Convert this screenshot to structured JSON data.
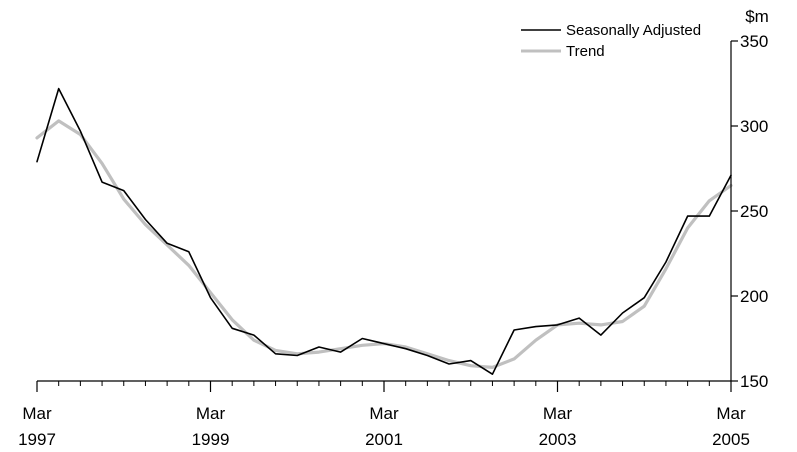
{
  "chart_data": {
    "type": "line",
    "title": "",
    "xlabel": "",
    "ylabel": "$m",
    "ylim": [
      150,
      350
    ],
    "y_ticks": [
      150,
      200,
      250,
      300,
      350
    ],
    "x_ticks": [
      {
        "x": 0,
        "month": "Mar",
        "year": "1997"
      },
      {
        "x": 8,
        "month": "Mar",
        "year": "1999"
      },
      {
        "x": 16,
        "month": "Mar",
        "year": "2001"
      },
      {
        "x": 24,
        "month": "Mar",
        "year": "2003"
      },
      {
        "x": 32,
        "month": "Mar",
        "year": "2005"
      }
    ],
    "x": [
      "Mar 1997",
      "Jun 1997",
      "Sep 1997",
      "Dec 1997",
      "Mar 1998",
      "Jun 1998",
      "Sep 1998",
      "Dec 1998",
      "Mar 1999",
      "Jun 1999",
      "Sep 1999",
      "Dec 1999",
      "Mar 2000",
      "Jun 2000",
      "Sep 2000",
      "Dec 2000",
      "Mar 2001",
      "Jun 2001",
      "Sep 2001",
      "Dec 2001",
      "Mar 2002",
      "Jun 2002",
      "Sep 2002",
      "Dec 2002",
      "Mar 2003",
      "Jun 2003",
      "Sep 2003",
      "Dec 2003",
      "Mar 2004",
      "Jun 2004",
      "Sep 2004",
      "Dec 2004",
      "Mar 2005"
    ],
    "legend_position": "top-right",
    "grid": false,
    "series": [
      {
        "name": "Seasonally Adjusted",
        "color": "#000000",
        "values": [
          279,
          322,
          297,
          267,
          262,
          245,
          231,
          226,
          199,
          181,
          177,
          166,
          165,
          170,
          167,
          175,
          172,
          169,
          165,
          160,
          162,
          154,
          180,
          182,
          183,
          187,
          177,
          190,
          199,
          220,
          247,
          247,
          271
        ]
      },
      {
        "name": "Trend",
        "color": "#c0c0c0",
        "values": [
          293,
          303,
          295,
          278,
          257,
          242,
          230,
          218,
          202,
          186,
          174,
          168,
          166,
          167,
          169,
          171,
          172,
          170,
          166,
          162,
          159,
          158,
          163,
          174,
          183,
          184,
          183,
          185,
          194,
          216,
          240,
          256,
          265
        ]
      }
    ]
  }
}
